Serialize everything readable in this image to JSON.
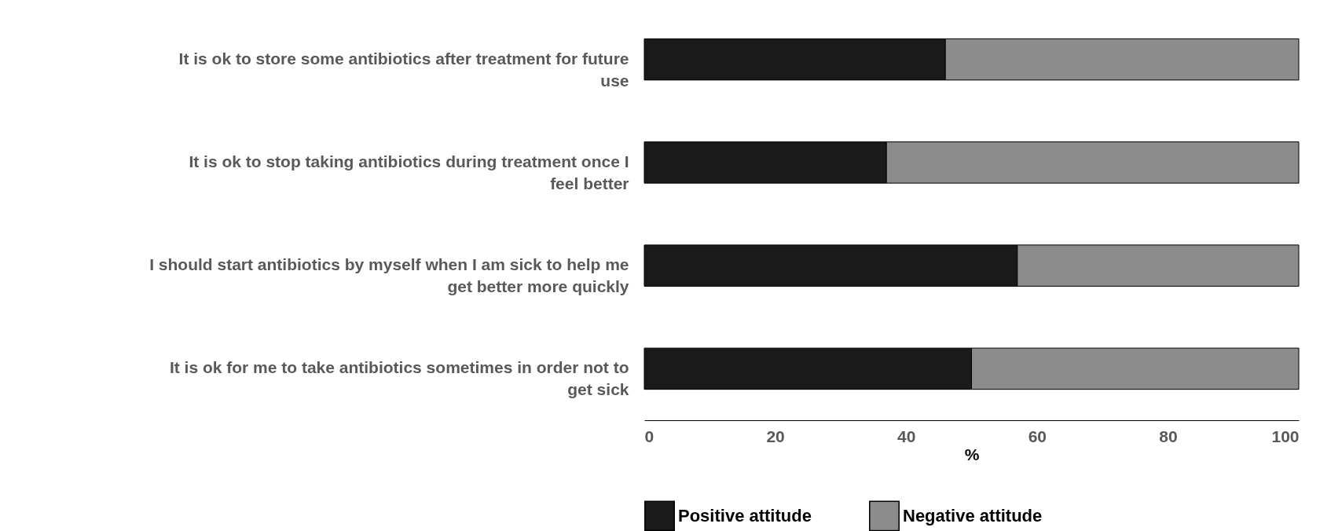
{
  "chart_data": {
    "type": "bar",
    "orientation": "horizontal",
    "stacked": true,
    "categories": [
      "It is ok to store some antibiotics after treatment for future use",
      "It is ok to stop taking antibiotics during treatment once I feel better",
      "I should start antibiotics by myself when I am sick to help me get better more quickly",
      "It is ok for me to take antibiotics sometimes in order not to get sick"
    ],
    "series": [
      {
        "name": "Positive attitude",
        "color": "#1a1a1a",
        "values": [
          46,
          37,
          57,
          50
        ]
      },
      {
        "name": "Negative attitude",
        "color": "#8c8c8c",
        "values": [
          54,
          63,
          43,
          50
        ]
      }
    ],
    "xlabel": "%",
    "xlim": [
      0,
      100
    ],
    "xticks": [
      0,
      20,
      40,
      60,
      80,
      100
    ],
    "grid": false,
    "legend": "bottom"
  }
}
